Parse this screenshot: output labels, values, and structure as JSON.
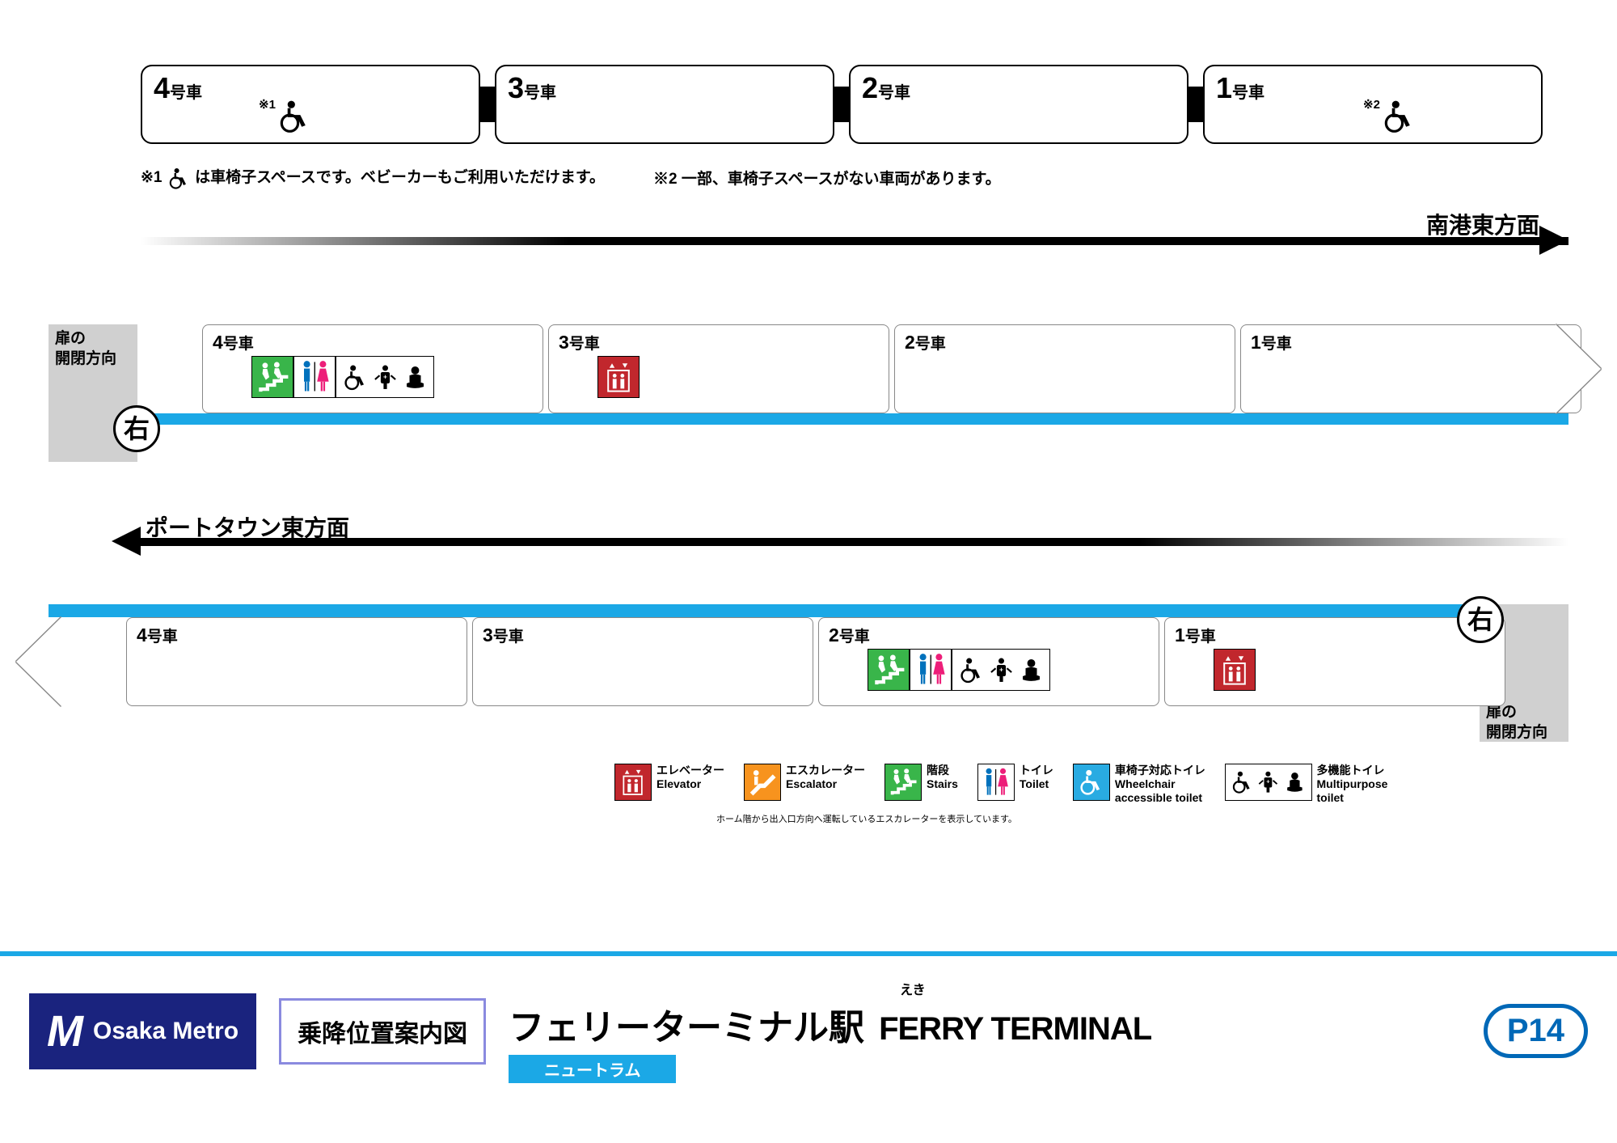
{
  "colors": {
    "blue": "#1ba8e6",
    "navy": "#1a237e",
    "elev": "#c1272d",
    "esc": "#f7931e",
    "stairs": "#39b54a",
    "toilet_m": "#0071bc",
    "toilet_f": "#ed1e79",
    "wc": "#29abe2",
    "stationBlue": "#0068b7"
  },
  "topTrain": {
    "cars": [
      {
        "num": "4",
        "suffix": "号車",
        "note": "※1",
        "hasWc": true,
        "wcLeft": 144
      },
      {
        "num": "3",
        "suffix": "号車",
        "hasWc": false
      },
      {
        "num": "2",
        "suffix": "号車",
        "hasWc": false
      },
      {
        "num": "1",
        "suffix": "号車",
        "note": "※2",
        "hasWc": true,
        "wcLeft": 196
      }
    ]
  },
  "notes": {
    "n1_prefix": "※1",
    "n1_text": "は車椅子スペースです。ベビーカーもご利用いただけます。",
    "n2": "※2 一部、車椅子スペースがない車両があります。"
  },
  "dir1": "南港東方面",
  "dir2": "ポートタウン東方面",
  "doorLabel": "扉の\n開閉方向",
  "migi": "右",
  "platformA": {
    "carsLeft": 190,
    "carWidth": 422,
    "cars": [
      "4号車",
      "3号車",
      "2号車",
      "1号車"
    ],
    "iconsCar4": [
      "stairs",
      "toilet",
      "multi"
    ],
    "iconsCar3": [
      "elevator"
    ]
  },
  "platformB": {
    "carsLeft": 96,
    "carWidth": 422,
    "cars": [
      "4号車",
      "3号車",
      "2号車",
      "1号車"
    ],
    "iconsCar2": [
      "stairs",
      "toilet",
      "multi"
    ],
    "iconsCar1": [
      "elevator"
    ]
  },
  "legend": [
    {
      "icon": "elevator",
      "jp": "エレベーター",
      "en": "Elevator",
      "bg": "#c1272d"
    },
    {
      "icon": "escalator",
      "jp": "エスカレーター",
      "en": "Escalator",
      "bg": "#f7931e"
    },
    {
      "icon": "stairs",
      "jp": "階段",
      "en": "Stairs",
      "bg": "#39b54a"
    },
    {
      "icon": "toilet",
      "jp": "トイレ",
      "en": "Toilet",
      "bg": "#ffffff"
    },
    {
      "icon": "wc",
      "jp": "車椅子対応トイレ",
      "en": "Wheelchair\naccessible toilet",
      "bg": "#29abe2"
    },
    {
      "icon": "multi",
      "jp": "多機能トイレ",
      "en": "Multipurpose\ntoilet",
      "bg": "#ffffff"
    }
  ],
  "escNote": "ホーム階から出入口方向へ運転しているエスカレーターを表示しています。",
  "footer": {
    "brand": "Osaka Metro",
    "guide": "乗降位置案内図",
    "furigana": "えき",
    "stationJp": "フェリーターミナル駅",
    "stationEn": "FERRY TERMINAL",
    "line": "ニュートラム",
    "code": "P14"
  }
}
